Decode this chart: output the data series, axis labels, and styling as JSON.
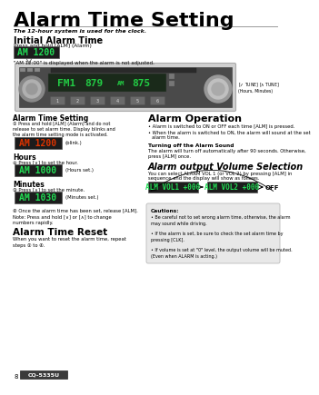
{
  "bg_color": "#ffffff",
  "page_title": "Alarm Time Setting",
  "title_fontsize": 16,
  "subtitle": "The 12-hour system is used for the clock.",
  "section1_title": "Initial Alarm Time",
  "section1_text": "Press and hold [ALM] (Alarm)",
  "display1_note": "\"AM 12:00\" is displayed when the alarm is not adjusted.",
  "section_alarm_setting_title": "Alarm Time Setting",
  "step1_text": "① Press and hold [ALM] (Alarm) and do not\nrelease to set alarm time. Display blinks and\nthe alarm time setting mode is activated.",
  "hours_title": "Hours",
  "hours_text": "② Press [∨] to set the hour.",
  "hours_note": "(Hours set.)",
  "minutes_title": "Minutes",
  "minutes_text": "③ Press [∧] to set the minute.",
  "minutes_note": "(Minutes set.)",
  "step4_text": "④ Once the alarm time has been set, release [ALM].",
  "note_text": "Note: Press and hold [∨] or [∧] to change\nnumbers rapidly.",
  "section_reset_title": "Alarm Time Reset",
  "reset_text": "When you want to reset the alarm time, repeat\nsteps ① to ④.",
  "section_operation_title": "Alarm Operation",
  "op_bullet1": "Alarm is switched to ON or OFF each time [ALM] is pressed.",
  "op_bullet2a": "When the alarm is switched to ON, the alarm will sound at the set",
  "op_bullet2b": "alarm time.",
  "turn_off_title": "Turning off the Alarm Sound",
  "turn_off_text": "The alarm will turn off automatically after 90 seconds. Otherwise,\npress [ALM] once.",
  "section_volume_title": "Alarm output Volume Selection",
  "volume_text1": "You can select ALARM VOL 1 (or VOL 2) by pressing [ALM] in",
  "volume_text2": "sequence and the display will show as follows.",
  "caution_title": "Cautions:",
  "caution1": "Be careful not to set wrong alarm time, otherwise, the alarm\nmay sound while driving.",
  "caution2": "If the alarm is set, be sure to check the set alarm time by\npressing [CLK].",
  "caution3": "If volume is set at \"0\" level, the output volume will be muted.\n(Even when ALARM is acting.)",
  "page_number": "8",
  "model": "CQ-5335U"
}
